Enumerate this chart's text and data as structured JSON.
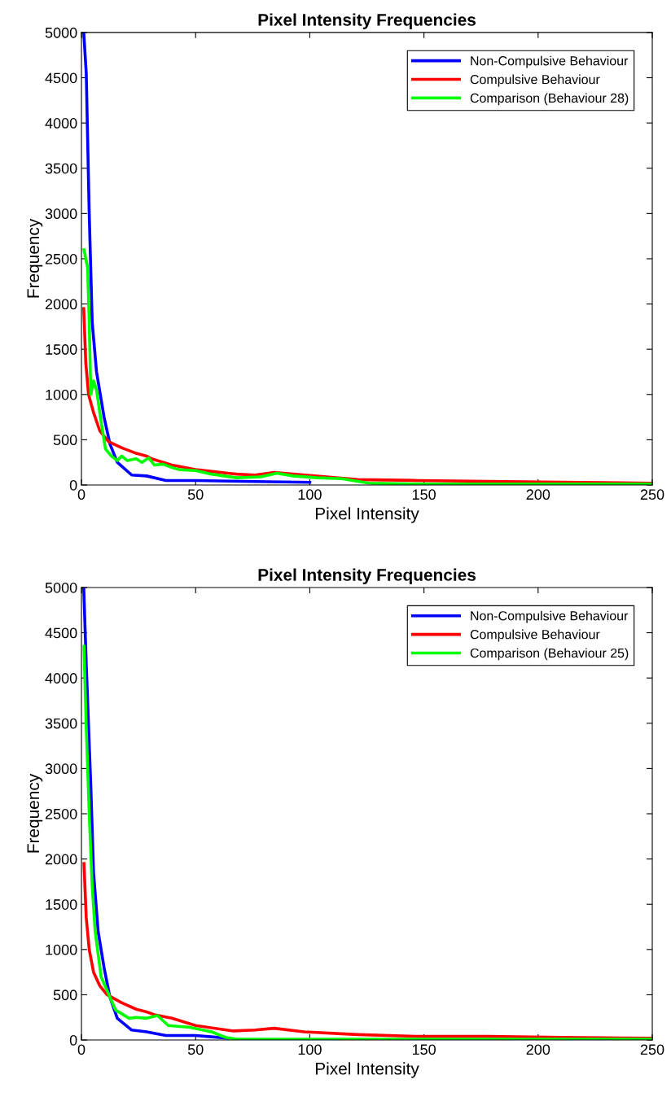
{
  "chart_data": [
    {
      "type": "line",
      "title": "Pixel Intensity Frequencies",
      "xlabel": "Pixel Intensity",
      "ylabel": "Frequency",
      "xlim": [
        0,
        250
      ],
      "ylim": [
        0,
        5000
      ],
      "xticks": [
        0,
        50,
        100,
        150,
        200,
        250
      ],
      "yticks": [
        0,
        500,
        1000,
        1500,
        2000,
        2500,
        3000,
        3500,
        4000,
        4500,
        5000
      ],
      "legend": "top right",
      "grid": false,
      "line_style": "solid",
      "marker": "none",
      "series": [
        {
          "name": "Non-Compulsive Behaviour",
          "color": "#0000ff",
          "x": [
            1,
            2.1,
            3.4,
            4.7,
            6.6,
            9.9,
            12.5,
            15.7,
            22,
            28.5,
            37,
            50,
            70,
            100
          ],
          "values": [
            5000,
            4550,
            3000,
            1800,
            1250,
            750,
            450,
            250,
            110,
            100,
            50,
            50,
            40,
            30
          ]
        },
        {
          "name": "Compulsive Behaviour",
          "color": "#ff0000",
          "x": [
            1,
            1.9,
            3.1,
            5.3,
            8,
            11.8,
            17.7,
            24,
            28.5,
            30.7,
            39.6,
            50,
            64,
            68,
            76,
            84.4,
            92.7,
            121,
            147,
            178,
            210,
            250
          ],
          "values": [
            1950,
            1350,
            1000,
            800,
            600,
            480,
            410,
            350,
            320,
            290,
            220,
            170,
            130,
            120,
            110,
            140,
            120,
            60,
            50,
            40,
            30,
            20
          ]
        },
        {
          "name": "Comparison (Behaviour 28)",
          "color": "#00ff00",
          "x": [
            1.1,
            2.7,
            3.4,
            4.1,
            5.3,
            6.6,
            8.6,
            10.5,
            13.1,
            15.7,
            17.6,
            20,
            24,
            26.5,
            29.4,
            32,
            35.7,
            40,
            42.8,
            50,
            57,
            68,
            78.5,
            85.6,
            92.7,
            103.4,
            114,
            121,
            126,
            150,
            200,
            250
          ],
          "values": [
            2600,
            2400,
            1800,
            1000,
            1150,
            1050,
            700,
            400,
            320,
            270,
            320,
            270,
            290,
            250,
            300,
            220,
            230,
            190,
            170,
            160,
            120,
            80,
            90,
            130,
            100,
            80,
            70,
            40,
            20,
            10,
            10,
            10
          ]
        }
      ]
    },
    {
      "type": "line",
      "title": "Pixel Intensity Frequencies",
      "xlabel": "Pixel Intensity",
      "ylabel": "Frequency",
      "xlim": [
        0,
        250
      ],
      "ylim": [
        0,
        5000
      ],
      "xticks": [
        0,
        50,
        100,
        150,
        200,
        250
      ],
      "yticks": [
        0,
        500,
        1000,
        1500,
        2000,
        2500,
        3000,
        3500,
        4000,
        4500,
        5000
      ],
      "legend": "top right",
      "grid": false,
      "line_style": "solid",
      "marker": "none",
      "series": [
        {
          "name": "Non-Compulsive Behaviour",
          "color": "#0000ff",
          "x": [
            1,
            2.1,
            4.1,
            5.3,
            7.3,
            9.9,
            12.5,
            15.7,
            22,
            28.5,
            37,
            50,
            64
          ],
          "values": [
            5000,
            4150,
            2800,
            1850,
            1200,
            800,
            470,
            240,
            110,
            90,
            50,
            50,
            20
          ]
        },
        {
          "name": "Compulsive Behaviour",
          "color": "#ff0000",
          "x": [
            1.1,
            2.1,
            3.4,
            5.3,
            8,
            11.2,
            17.7,
            24,
            28.5,
            32,
            39.6,
            50,
            66.6,
            76,
            84.4,
            97.5,
            121,
            147,
            178,
            210,
            250
          ],
          "values": [
            1950,
            1350,
            1000,
            750,
            600,
            500,
            410,
            340,
            310,
            280,
            240,
            160,
            100,
            110,
            130,
            90,
            60,
            40,
            40,
            30,
            20
          ]
        },
        {
          "name": "Comparison (Behaviour 25)",
          "color": "#00ff00",
          "x": [
            1.1,
            2.1,
            3.4,
            4.7,
            6,
            8.6,
            12.5,
            15,
            20.9,
            24,
            28.5,
            33.3,
            38,
            47.5,
            57,
            63,
            68,
            100,
            150,
            200,
            250
          ],
          "values": [
            4350,
            3450,
            2500,
            1700,
            1200,
            700,
            470,
            330,
            240,
            250,
            240,
            270,
            160,
            140,
            90,
            30,
            10,
            10,
            10,
            10,
            10
          ]
        }
      ]
    }
  ]
}
